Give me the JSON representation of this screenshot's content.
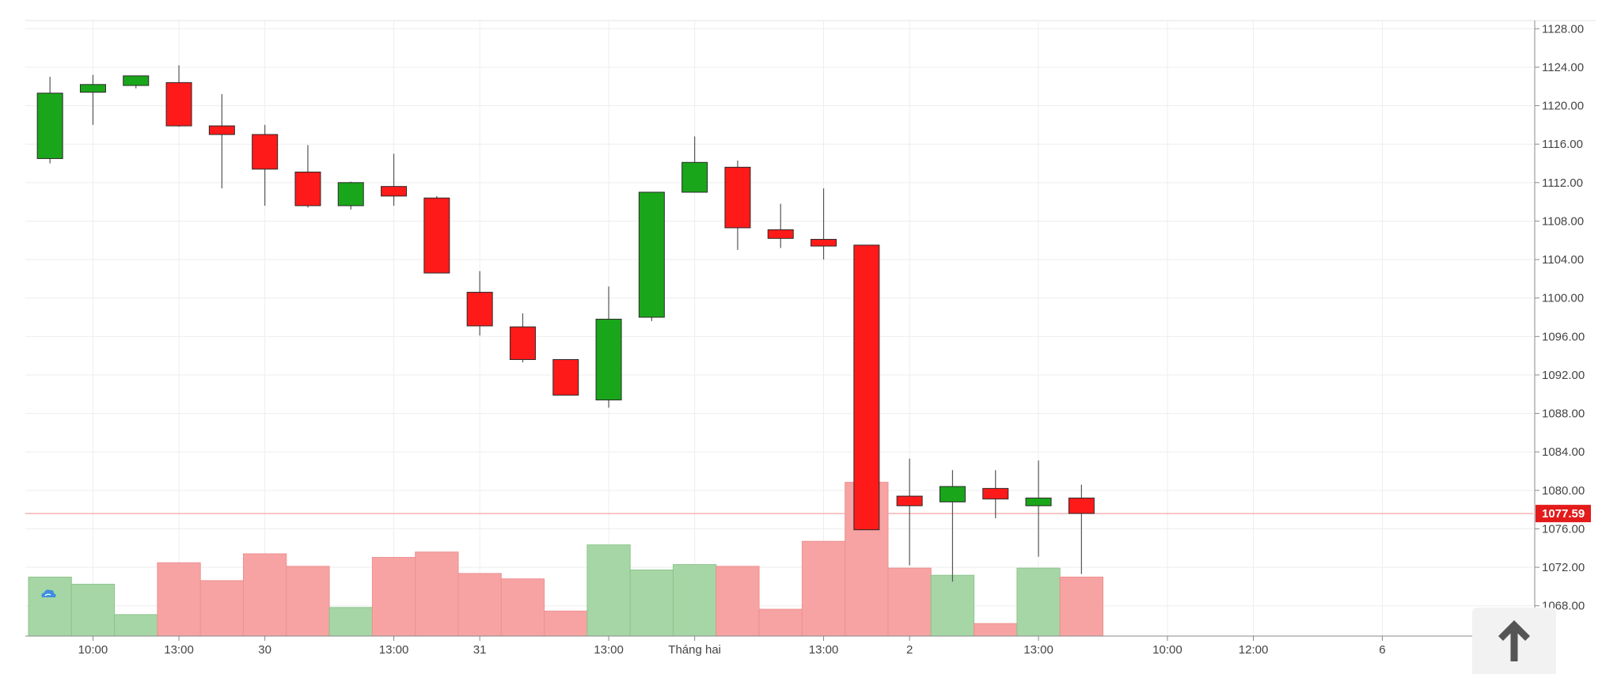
{
  "colors": {
    "up": "#1aa61a",
    "down": "#ff1a1a",
    "up_volume": "#a6d6a6",
    "down_volume": "#f7a3a3",
    "last_price_line": "#f5a3a3",
    "last_price_badge": "#e31b1b",
    "grid": "#eeeeee",
    "axis_text": "#444444"
  },
  "icons": {
    "logo": "cloud-logo-icon",
    "scroll": "arrow-up-icon"
  },
  "chart_data": {
    "type": "candlestick",
    "title": "",
    "ylim": [
      1066,
      1130
    ],
    "grid": true,
    "y_ticks": [
      "1128.00",
      "1124.00",
      "1120.00",
      "1116.00",
      "1112.00",
      "1108.00",
      "1104.00",
      "1100.00",
      "1096.00",
      "1092.00",
      "1088.00",
      "1084.00",
      "1080.00",
      "1076.00",
      "1072.00",
      "1068.00"
    ],
    "x_ticks": [
      {
        "label": "10:00",
        "slot": 1.5
      },
      {
        "label": "13:00",
        "slot": 3.5
      },
      {
        "label": "30",
        "slot": 5.5
      },
      {
        "label": "13:00",
        "slot": 8.5
      },
      {
        "label": "31",
        "slot": 10.5
      },
      {
        "label": "13:00",
        "slot": 13.5
      },
      {
        "label": "Tháng hai",
        "slot": 15.5
      },
      {
        "label": "13:00",
        "slot": 18.5
      },
      {
        "label": "2",
        "slot": 20.5
      },
      {
        "label": "13:00",
        "slot": 23.5
      },
      {
        "label": "10:00",
        "slot": 26.5
      },
      {
        "label": "12:00",
        "slot": 28.5
      },
      {
        "label": "6",
        "slot": 31.5
      }
    ],
    "last_price": 1077.59,
    "last_price_label": "1077.59",
    "volume_scale_max": 100,
    "candles": [
      {
        "o": 1114.5,
        "h": 1123.0,
        "l": 1114.0,
        "c": 1121.3,
        "v": 33
      },
      {
        "o": 1121.4,
        "h": 1123.2,
        "l": 1118.0,
        "c": 1122.2,
        "v": 29
      },
      {
        "o": 1122.1,
        "h": 1123.1,
        "l": 1121.8,
        "c": 1123.1,
        "v": 12
      },
      {
        "o": 1122.4,
        "h": 1124.2,
        "l": 1117.8,
        "c": 1117.9,
        "v": 41
      },
      {
        "o": 1117.9,
        "h": 1121.2,
        "l": 1111.4,
        "c": 1117.0,
        "v": 31
      },
      {
        "o": 1117.0,
        "h": 1118.0,
        "l": 1109.6,
        "c": 1113.4,
        "v": 46
      },
      {
        "o": 1113.1,
        "h": 1115.9,
        "l": 1109.4,
        "c": 1109.6,
        "v": 39
      },
      {
        "o": 1109.6,
        "h": 1112.1,
        "l": 1109.2,
        "c": 1112.0,
        "v": 16
      },
      {
        "o": 1111.6,
        "h": 1115.0,
        "l": 1109.6,
        "c": 1110.6,
        "v": 44
      },
      {
        "o": 1110.4,
        "h": 1110.6,
        "l": 1102.6,
        "c": 1102.6,
        "v": 47
      },
      {
        "o": 1100.6,
        "h": 1102.8,
        "l": 1096.1,
        "c": 1097.1,
        "v": 35
      },
      {
        "o": 1097.0,
        "h": 1098.4,
        "l": 1093.3,
        "c": 1093.6,
        "v": 32
      },
      {
        "o": 1093.6,
        "h": 1093.6,
        "l": 1089.9,
        "c": 1089.9,
        "v": 14
      },
      {
        "o": 1089.4,
        "h": 1101.2,
        "l": 1088.6,
        "c": 1097.8,
        "v": 51
      },
      {
        "o": 1098.0,
        "h": 1111.0,
        "l": 1097.6,
        "c": 1111.0,
        "v": 37
      },
      {
        "o": 1111.0,
        "h": 1116.8,
        "l": 1111.0,
        "c": 1114.1,
        "v": 40
      },
      {
        "o": 1113.6,
        "h": 1114.3,
        "l": 1105.0,
        "c": 1107.3,
        "v": 39
      },
      {
        "o": 1107.1,
        "h": 1109.8,
        "l": 1105.2,
        "c": 1106.2,
        "v": 15
      },
      {
        "o": 1106.1,
        "h": 1111.4,
        "l": 1104.0,
        "c": 1105.4,
        "v": 53
      },
      {
        "o": 1105.5,
        "h": 1105.5,
        "l": 1075.9,
        "c": 1075.9,
        "v": 86
      },
      {
        "o": 1079.4,
        "h": 1083.3,
        "l": 1072.2,
        "c": 1078.4,
        "v": 38
      },
      {
        "o": 1078.8,
        "h": 1082.1,
        "l": 1070.5,
        "c": 1080.4,
        "v": 34
      },
      {
        "o": 1080.2,
        "h": 1082.1,
        "l": 1077.1,
        "c": 1079.1,
        "v": 7
      },
      {
        "o": 1078.4,
        "h": 1083.1,
        "l": 1073.1,
        "c": 1079.2,
        "v": 38
      },
      {
        "o": 1079.2,
        "h": 1080.6,
        "l": 1071.3,
        "c": 1077.6,
        "v": 33
      }
    ]
  }
}
